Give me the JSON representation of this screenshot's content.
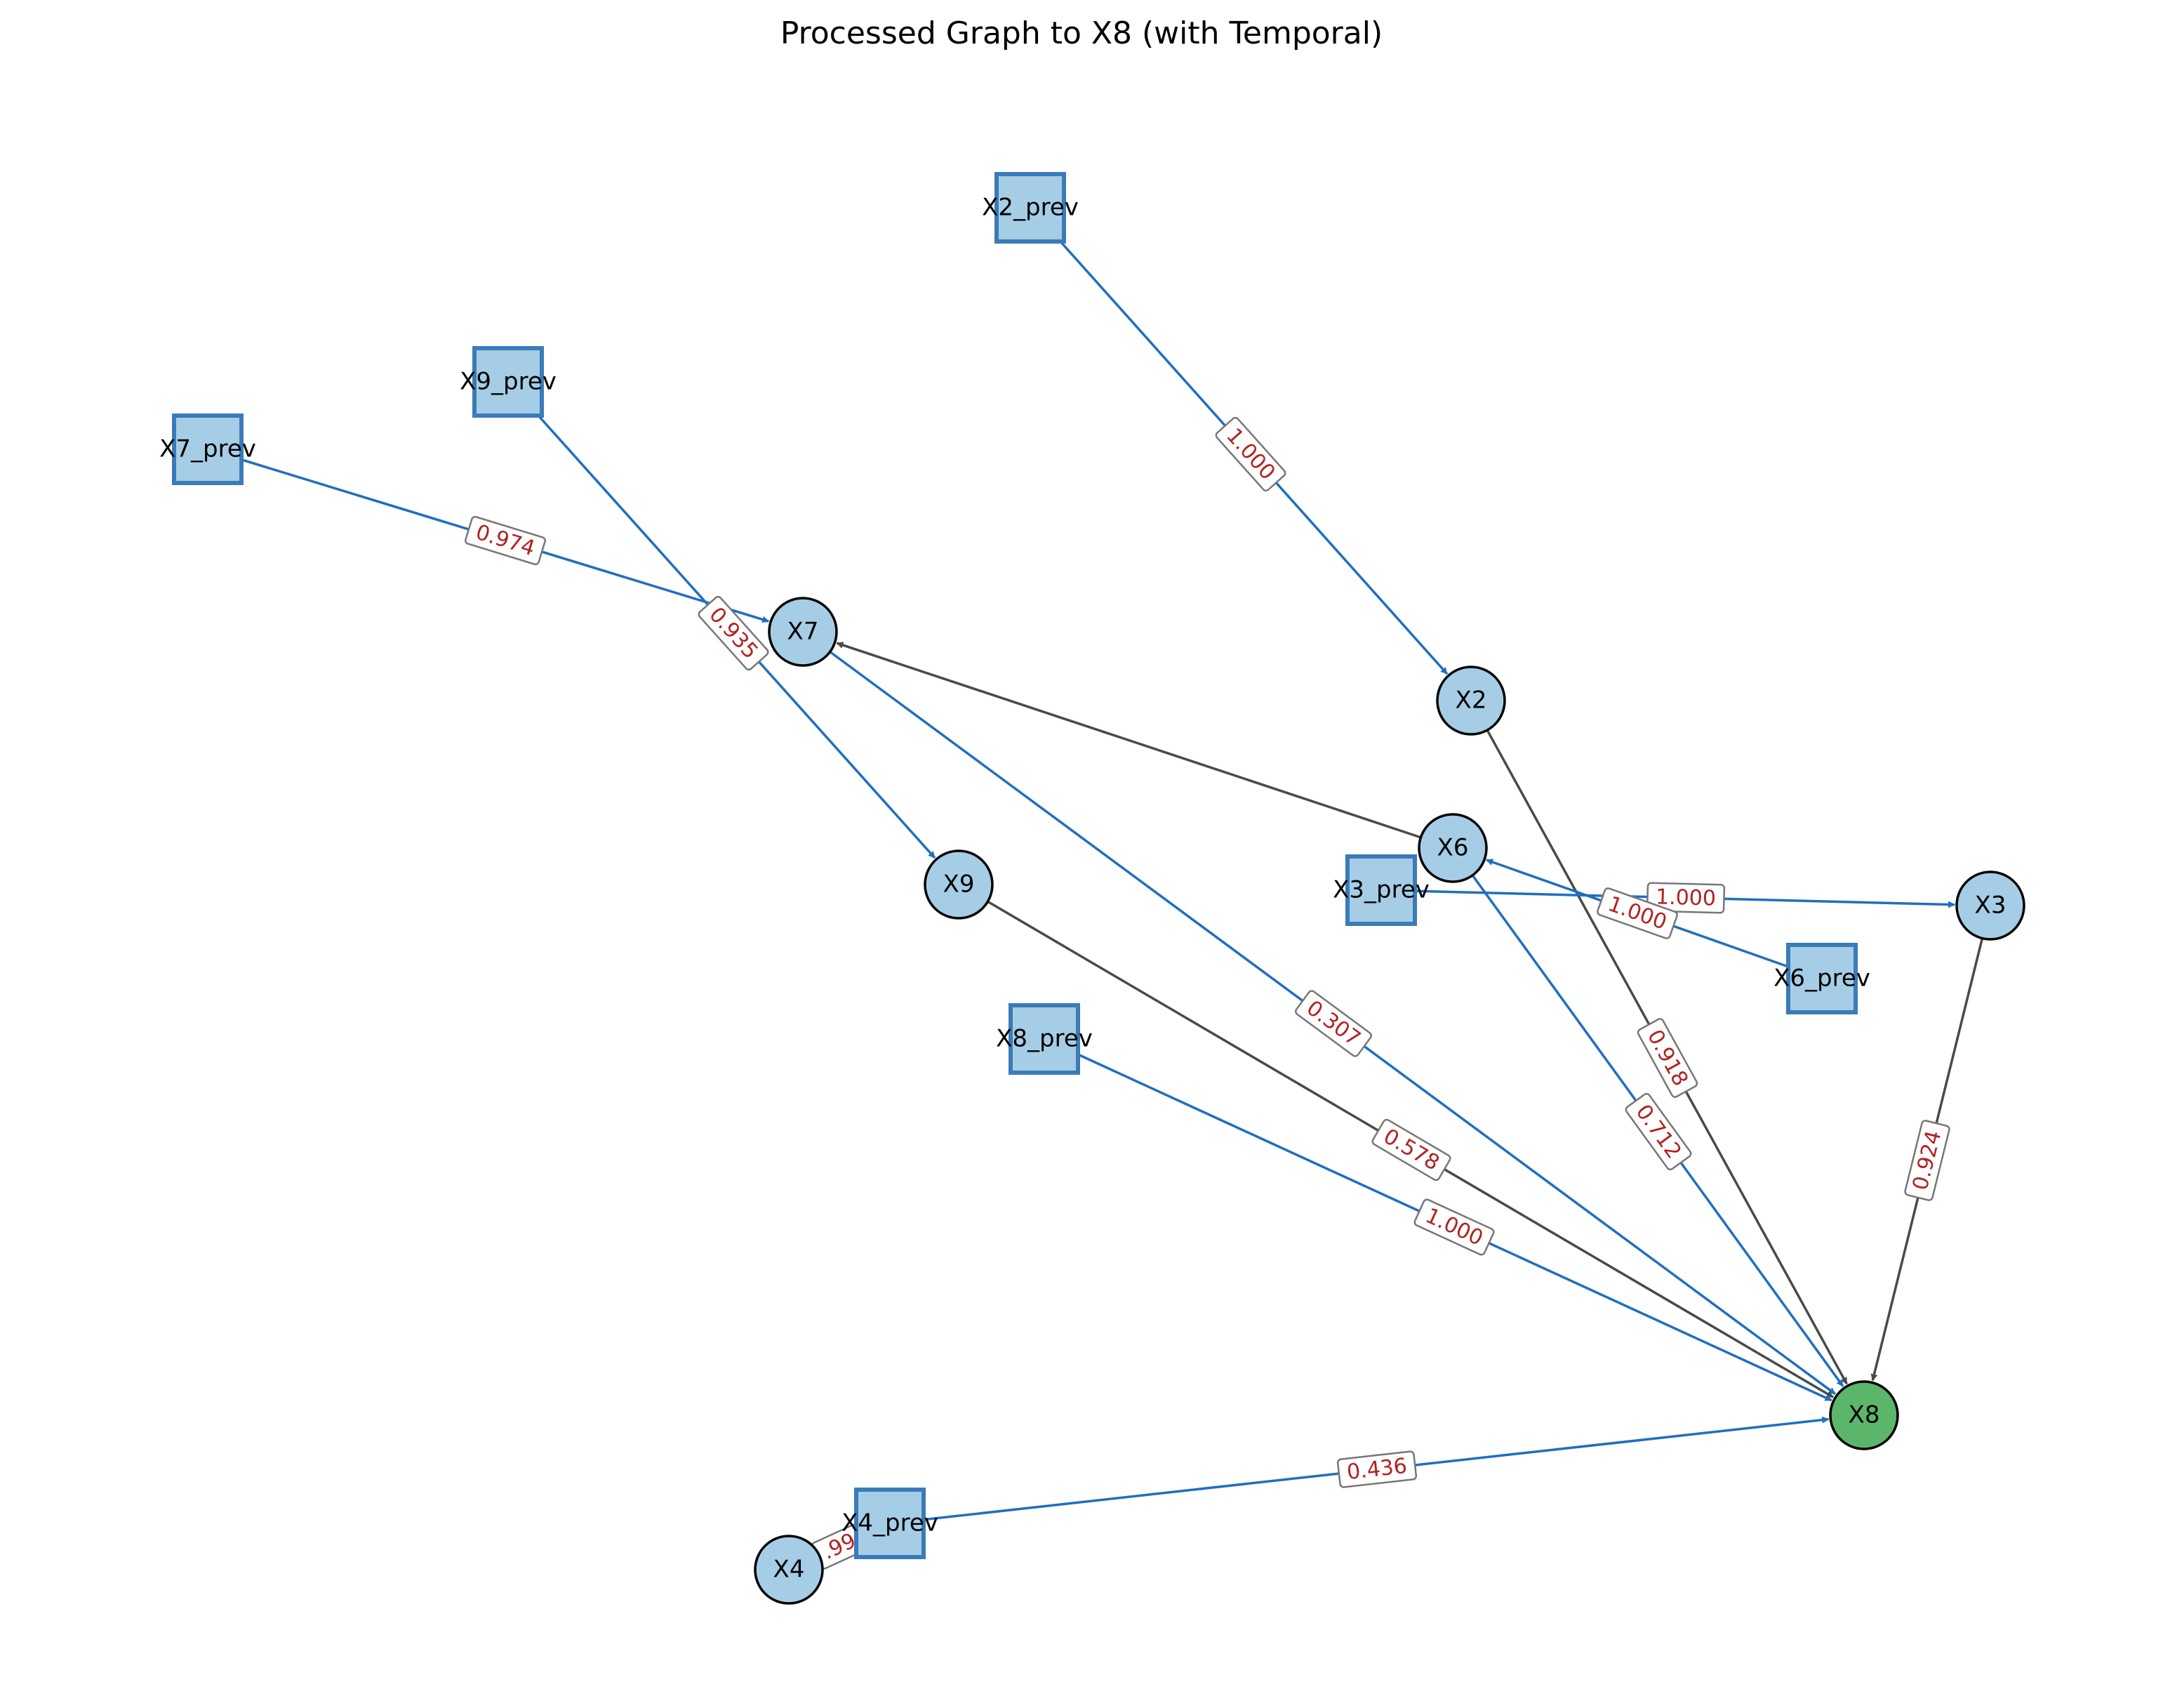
{
  "title": "Processed Graph to X8 (with Temporal)",
  "colors": {
    "node_fill": "#a6cde6",
    "target_fill": "#5cb66a",
    "square_stroke": "#3a7bb8",
    "circle_stroke": "#000000",
    "temporal_edge": "#1f6fc0",
    "causal_edge": "#4a4a4a",
    "weight_text": "#b22222",
    "label_box_stroke": "#777777"
  },
  "nodes": [
    {
      "id": "X2_prev",
      "label": "X2_prev",
      "shape": "square"
    },
    {
      "id": "X9_prev",
      "label": "X9_prev",
      "shape": "square"
    },
    {
      "id": "X7_prev",
      "label": "X7_prev",
      "shape": "square"
    },
    {
      "id": "X7",
      "label": "X7",
      "shape": "circle"
    },
    {
      "id": "X2",
      "label": "X2",
      "shape": "circle"
    },
    {
      "id": "X6",
      "label": "X6",
      "shape": "circle"
    },
    {
      "id": "X3_prev",
      "label": "X3_prev",
      "shape": "square"
    },
    {
      "id": "X9",
      "label": "X9",
      "shape": "circle"
    },
    {
      "id": "X3",
      "label": "X3",
      "shape": "circle"
    },
    {
      "id": "X6_prev",
      "label": "X6_prev",
      "shape": "square"
    },
    {
      "id": "X8_prev",
      "label": "X8_prev",
      "shape": "square"
    },
    {
      "id": "X8",
      "label": "X8",
      "shape": "circle",
      "target": true
    },
    {
      "id": "X4_prev",
      "label": "X4_prev",
      "shape": "square"
    },
    {
      "id": "X4",
      "label": "X4",
      "shape": "circle"
    }
  ],
  "edges": [
    {
      "from": "X2_prev",
      "to": "X2",
      "weight": "1.000",
      "kind": "temporal"
    },
    {
      "from": "X7_prev",
      "to": "X7",
      "weight": "0.974",
      "kind": "temporal"
    },
    {
      "from": "X9_prev",
      "to": "X9",
      "weight": "0.935",
      "kind": "temporal"
    },
    {
      "from": "X6",
      "to": "X7",
      "weight": "",
      "kind": "causal"
    },
    {
      "from": "X7",
      "to": "X8",
      "weight": "0.307",
      "kind": "temporal"
    },
    {
      "from": "X2",
      "to": "X8",
      "weight": "0.918",
      "kind": "causal"
    },
    {
      "from": "X6",
      "to": "X8",
      "weight": "0.712",
      "kind": "temporal"
    },
    {
      "from": "X3_prev",
      "to": "X3",
      "weight": "1.000",
      "kind": "temporal"
    },
    {
      "from": "X6_prev",
      "to": "X6",
      "weight": "1.000",
      "kind": "temporal"
    },
    {
      "from": "X3",
      "to": "X8",
      "weight": "0.924",
      "kind": "causal"
    },
    {
      "from": "X9",
      "to": "X8",
      "weight": "0.578",
      "kind": "causal"
    },
    {
      "from": "X8_prev",
      "to": "X8",
      "weight": "1.000",
      "kind": "temporal"
    },
    {
      "from": "X4_prev",
      "to": "X8",
      "weight": "0.436",
      "kind": "temporal"
    },
    {
      "from": "X4_prev",
      "to": "X4",
      "weight": ".99",
      "kind": "causal"
    }
  ]
}
